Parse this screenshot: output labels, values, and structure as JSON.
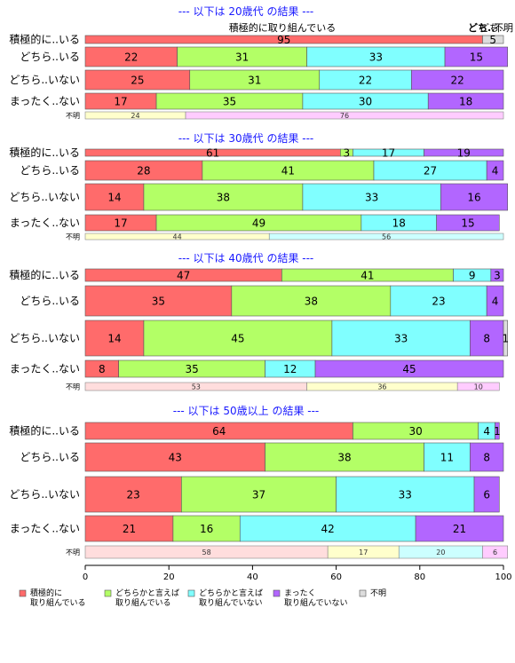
{
  "chart_data": {
    "type": "bar",
    "orientation": "horizontal",
    "stacked": "percent",
    "xlim": [
      0,
      100
    ],
    "xticks": [
      0,
      20,
      40,
      60,
      80,
      100
    ],
    "colors": {
      "positive": "#ff6b6b",
      "somewhat_positive": "#b3ff66",
      "somewhat_negative": "#80ffff",
      "negative": "#b266ff",
      "unknown": "#dddddd"
    },
    "top_header": {
      "center": "積極的に取り組んでいる",
      "right_a": "どち..",
      "right_b": "どち..",
      "right_c": "不明"
    },
    "legend": [
      {
        "key": "positive",
        "label_lines": [
          "積極的に",
          "取り組んでいる"
        ]
      },
      {
        "key": "somewhat_positive",
        "label_lines": [
          "どちらかと言えば",
          "取り組んでいる"
        ]
      },
      {
        "key": "somewhat_negative",
        "label_lines": [
          "どちらかと言えば",
          "取り組んでいない"
        ]
      },
      {
        "key": "negative",
        "label_lines": [
          "まったく",
          "取り組んでいない"
        ]
      },
      {
        "key": "unknown",
        "label_lines": [
          "不明"
        ]
      }
    ],
    "panels": [
      {
        "title": "--- 以下は 20歳代 の結果 ---",
        "rows": [
          {
            "label": "積極的に..いる",
            "values": [
              95,
              0,
              0,
              0,
              5
            ],
            "labels": [
              "95",
              "",
              "",
              "",
              "5"
            ]
          },
          {
            "label": "どちら..いる",
            "values": [
              22,
              31,
              33,
              15,
              0
            ],
            "labels": [
              "22",
              "31",
              "33",
              "15",
              ""
            ]
          },
          {
            "label": "どちら..いない",
            "values": [
              25,
              31,
              22,
              22,
              0
            ],
            "labels": [
              "25",
              "31",
              "22",
              "22",
              ""
            ]
          },
          {
            "label": "まったく..ない",
            "values": [
              17,
              35,
              30,
              18,
              0
            ],
            "labels": [
              "17",
              "35",
              "30",
              "18",
              ""
            ]
          }
        ],
        "unknown_row": {
          "label": "不明",
          "values": [
            24,
            76
          ],
          "labels": [
            "24",
            "76"
          ],
          "colors": [
            "#ffffcc",
            "#ffccff"
          ]
        }
      },
      {
        "title": "--- 以下は 30歳代 の結果 ---",
        "rows": [
          {
            "label": "積極的に..いる",
            "values": [
              61,
              3,
              17,
              19,
              0
            ],
            "labels": [
              "61",
              "3",
              "17",
              "19",
              ""
            ]
          },
          {
            "label": "どちら..いる",
            "values": [
              28,
              41,
              27,
              4,
              0
            ],
            "labels": [
              "28",
              "41",
              "27",
              "4",
              ""
            ]
          },
          {
            "label": "どちら..いない",
            "values": [
              14,
              38,
              33,
              16,
              0
            ],
            "labels": [
              "14",
              "38",
              "33",
              "16",
              ""
            ]
          },
          {
            "label": "まったく..ない",
            "values": [
              17,
              49,
              18,
              15,
              0
            ],
            "labels": [
              "17",
              "49",
              "18",
              "15",
              ""
            ]
          }
        ],
        "unknown_row": {
          "label": "不明",
          "values": [
            44,
            56
          ],
          "labels": [
            "44",
            "56"
          ],
          "colors": [
            "#ffffcc",
            "#ccffff"
          ]
        }
      },
      {
        "title": "--- 以下は 40歳代 の結果 ---",
        "rows": [
          {
            "label": "積極的に..いる",
            "values": [
              47,
              41,
              9,
              3,
              0
            ],
            "labels": [
              "47",
              "41",
              "9",
              "3",
              ""
            ]
          },
          {
            "label": "どちら..いる",
            "values": [
              35,
              38,
              23,
              4,
              0
            ],
            "labels": [
              "35",
              "38",
              "23",
              "4",
              ""
            ]
          },
          {
            "label": "どちら..いない",
            "values": [
              14,
              45,
              33,
              8,
              1
            ],
            "labels": [
              "14",
              "45",
              "33",
              "8",
              "1"
            ]
          },
          {
            "label": "まったく..ない",
            "values": [
              8,
              35,
              12,
              45,
              0
            ],
            "labels": [
              "8",
              "35",
              "12",
              "45",
              ""
            ]
          }
        ],
        "unknown_row": {
          "label": "不明",
          "values": [
            53,
            36,
            10
          ],
          "labels": [
            "53",
            "36",
            "10"
          ],
          "colors": [
            "#ffdddd",
            "#ffffcc",
            "#ffccff"
          ]
        }
      },
      {
        "title": "--- 以下は 50歳以上 の結果 ---",
        "rows": [
          {
            "label": "積極的に..いる",
            "values": [
              64,
              30,
              4,
              1,
              0
            ],
            "labels": [
              "64",
              "30",
              "4",
              "1",
              ""
            ]
          },
          {
            "label": "どちら..いる",
            "values": [
              43,
              38,
              11,
              8,
              0
            ],
            "labels": [
              "43",
              "38",
              "11",
              "8",
              ""
            ]
          },
          {
            "label": "どちら..いない",
            "values": [
              23,
              37,
              33,
              6,
              0
            ],
            "labels": [
              "23",
              "37",
              "33",
              "6",
              ""
            ]
          },
          {
            "label": "まったく..ない",
            "values": [
              21,
              16,
              42,
              21,
              0
            ],
            "labels": [
              "21",
              "16",
              "42",
              "21",
              ""
            ]
          }
        ],
        "unknown_row": {
          "label": "不明",
          "values": [
            58,
            17,
            20,
            6
          ],
          "labels": [
            "58",
            "17",
            "20",
            "6"
          ],
          "colors": [
            "#ffdddd",
            "#ffffcc",
            "#ccffff",
            "#ffccff"
          ]
        }
      }
    ]
  }
}
